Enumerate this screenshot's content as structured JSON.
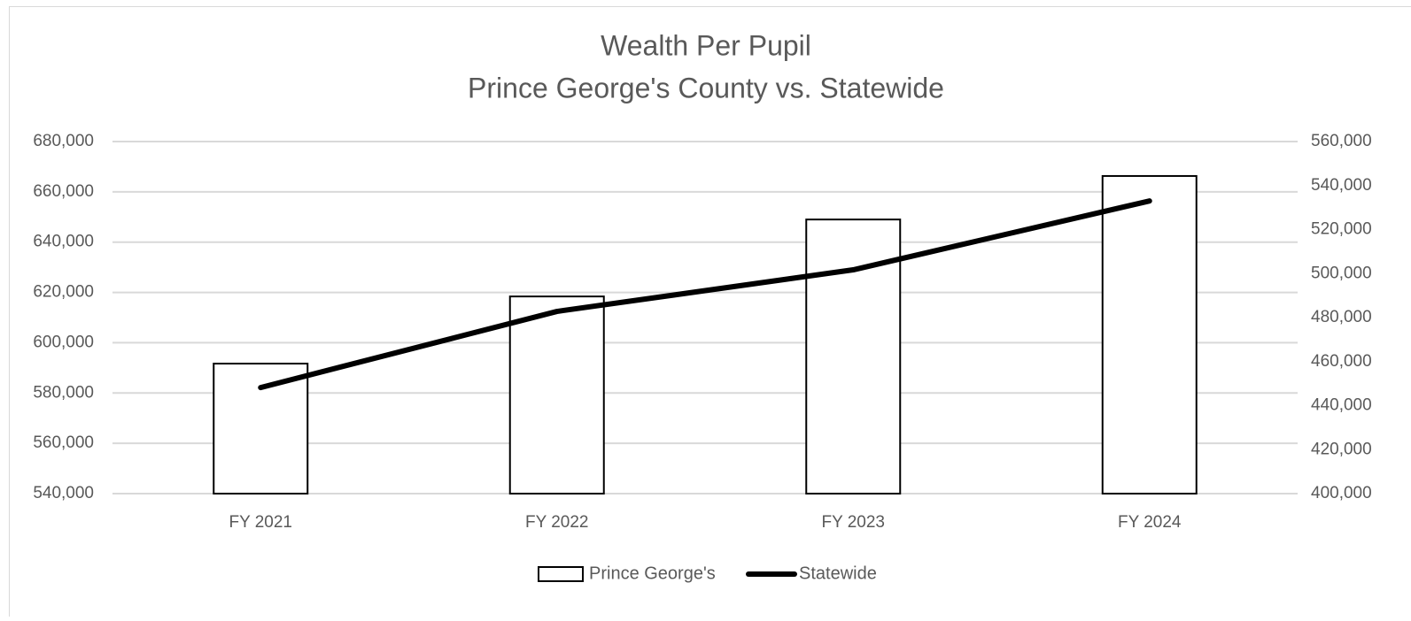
{
  "chart_data": {
    "type": "combo",
    "title": "Wealth Per Pupil",
    "subtitle": "Prince George's County vs. Statewide",
    "categories": [
      "FY 2021",
      "FY 2022",
      "FY 2023",
      "FY 2024"
    ],
    "series": [
      {
        "name": "Prince George's",
        "type": "bar",
        "color": "#ffffff",
        "stroke": "#000000",
        "values": [
          591700,
          618400,
          649000,
          666300
        ]
      },
      {
        "name": "Statewide",
        "type": "line",
        "axis": "y2",
        "color": "#000000",
        "values": [
          448200,
          482800,
          501700,
          533000
        ]
      }
    ],
    "ylim": [
      540000,
      680000
    ],
    "yticks": [
      {
        "value": 540000,
        "label": "540,000"
      },
      {
        "value": 560000,
        "label": "560,000"
      },
      {
        "value": 580000,
        "label": "580,000"
      },
      {
        "value": 600000,
        "label": "600,000"
      },
      {
        "value": 620000,
        "label": "620,000"
      },
      {
        "value": 640000,
        "label": "640,000"
      },
      {
        "value": 660000,
        "label": "660,000"
      },
      {
        "value": 680000,
        "label": "680,000"
      }
    ],
    "y2lim": [
      400000,
      560000
    ],
    "y2ticks": [
      {
        "value": 400000,
        "label": "400,000"
      },
      {
        "value": 420000,
        "label": "420,000"
      },
      {
        "value": 440000,
        "label": "440,000"
      },
      {
        "value": 460000,
        "label": "460,000"
      },
      {
        "value": 480000,
        "label": "480,000"
      },
      {
        "value": 500000,
        "label": "500,000"
      },
      {
        "value": 520000,
        "label": "520,000"
      },
      {
        "value": 540000,
        "label": "540,000"
      },
      {
        "value": 560000,
        "label": "560,000"
      }
    ],
    "grid": true,
    "legend": "bottom"
  }
}
